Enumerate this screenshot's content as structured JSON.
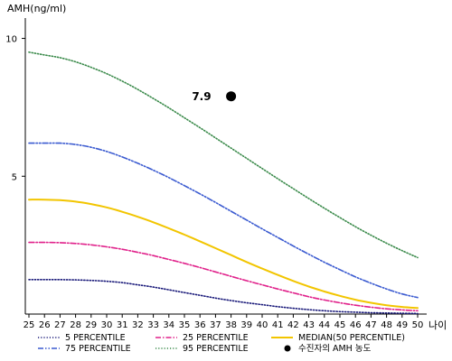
{
  "chart_data": {
    "type": "line",
    "ylabel": "AMH(ng/ml)",
    "xlabel": "나이",
    "x": [
      25,
      26,
      27,
      28,
      29,
      30,
      31,
      32,
      33,
      34,
      35,
      36,
      37,
      38,
      39,
      40,
      41,
      42,
      43,
      44,
      45,
      46,
      47,
      48,
      49,
      50
    ],
    "xlim": [
      25,
      50
    ],
    "ylim": [
      0,
      11
    ],
    "yticks": [
      5,
      10
    ],
    "series": [
      {
        "name": "5 PERCENTILE",
        "color": "#1a1a7a",
        "style": "dotted",
        "values": [
          1.25,
          1.25,
          1.25,
          1.24,
          1.22,
          1.19,
          1.14,
          1.06,
          0.98,
          0.88,
          0.78,
          0.68,
          0.58,
          0.49,
          0.41,
          0.34,
          0.27,
          0.21,
          0.16,
          0.12,
          0.09,
          0.07,
          0.05,
          0.04,
          0.03,
          0.02
        ]
      },
      {
        "name": "25 PERCENTILE",
        "color": "#e0208a",
        "style": "dashdot",
        "values": [
          2.6,
          2.6,
          2.59,
          2.56,
          2.51,
          2.44,
          2.35,
          2.24,
          2.12,
          1.98,
          1.84,
          1.69,
          1.53,
          1.37,
          1.21,
          1.06,
          0.91,
          0.77,
          0.63,
          0.51,
          0.41,
          0.32,
          0.25,
          0.19,
          0.15,
          0.12
        ]
      },
      {
        "name": "MEDIAN(50 PERCENTILE)",
        "color": "#f2c500",
        "style": "solid",
        "values": [
          4.15,
          4.15,
          4.13,
          4.08,
          3.99,
          3.87,
          3.71,
          3.53,
          3.33,
          3.11,
          2.88,
          2.64,
          2.39,
          2.14,
          1.89,
          1.65,
          1.42,
          1.2,
          1.0,
          0.82,
          0.66,
          0.52,
          0.41,
          0.32,
          0.26,
          0.22
        ]
      },
      {
        "name": "75 PERCENTILE",
        "color": "#3a5ad0",
        "style": "dashdotdot",
        "values": [
          6.2,
          6.2,
          6.2,
          6.15,
          6.05,
          5.9,
          5.7,
          5.47,
          5.22,
          4.95,
          4.66,
          4.36,
          4.05,
          3.73,
          3.41,
          3.09,
          2.78,
          2.47,
          2.17,
          1.88,
          1.61,
          1.35,
          1.12,
          0.91,
          0.73,
          0.6
        ]
      },
      {
        "name": "95 PERCENTILE",
        "color": "#3a8a4a",
        "style": "dotted",
        "values": [
          9.5,
          9.4,
          9.3,
          9.15,
          8.95,
          8.72,
          8.45,
          8.15,
          7.82,
          7.48,
          7.12,
          6.76,
          6.39,
          6.02,
          5.65,
          5.28,
          4.91,
          4.55,
          4.19,
          3.84,
          3.5,
          3.17,
          2.86,
          2.57,
          2.3,
          2.05
        ]
      }
    ],
    "marker": {
      "name": "수진자의 AMH 농도",
      "label": "7.9",
      "x": 38,
      "y": 7.9,
      "color": "#000000"
    }
  }
}
